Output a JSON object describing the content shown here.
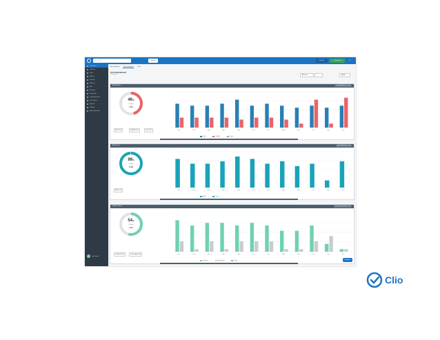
{
  "topbar": {
    "search_placeholder": "Search Clio",
    "search_button": "Search",
    "btn_timer": "00:00:00",
    "btn_create": "Create new",
    "color": "#1a74c3"
  },
  "sidebar": {
    "items": [
      {
        "label": "Dashboard",
        "icon": "dashboard-icon"
      },
      {
        "label": "Calendar",
        "icon": "calendar-icon"
      },
      {
        "label": "Tasks",
        "icon": "tasks-icon"
      },
      {
        "label": "Matters",
        "icon": "briefcase-icon"
      },
      {
        "label": "Contacts",
        "icon": "contacts-icon"
      },
      {
        "label": "Activities",
        "icon": "clock-icon"
      },
      {
        "label": "Bills",
        "icon": "bills-icon"
      },
      {
        "label": "Accounts",
        "icon": "bank-icon"
      },
      {
        "label": "Documents",
        "icon": "document-icon"
      },
      {
        "label": "Communications",
        "icon": "chat-icon"
      },
      {
        "label": "Clio Connect",
        "icon": "connect-icon"
      },
      {
        "label": "Reports",
        "icon": "report-icon"
      },
      {
        "label": "Settings",
        "icon": "gear-icon"
      },
      {
        "label": "App Integrations",
        "icon": "apps-icon"
      }
    ],
    "user_name": "Jane Smith",
    "user_role": "Attorney"
  },
  "tabs": [
    "My Dashboard",
    "Firm Dashboard",
    "Feed"
  ],
  "page": {
    "title": "Firm Dashboard",
    "subtitle": "This month",
    "filter_label": "All users",
    "range_label": "Month"
  },
  "panels": [
    {
      "title": "Billable Hours",
      "badge": "Target Billable Hours: 140",
      "donut_value": "46",
      "donut_unit": "%",
      "donut_caption": "Of Target",
      "donut_mid": "33h",
      "stats": [
        "Billed 0.00",
        "Unbilled 0.00",
        "Total 0.00"
      ],
      "legend": [
        "Billed",
        "Unbilled",
        "Target"
      ],
      "colors": {
        "primary": "#2a7fb5",
        "secondary": "#e96468",
        "ring": "#e96468"
      }
    },
    {
      "title": "Billed Hours",
      "badge": "Target Billed Hours: 120",
      "donut_value": "99",
      "donut_unit": "%",
      "donut_caption": "Of Target",
      "donut_mid": "119h",
      "stats": [
        "Billed 0.00"
      ],
      "legend": [
        "Billed",
        "Target"
      ],
      "colors": {
        "primary": "#1aa3b8",
        "secondary": "#1aa3b8",
        "ring": "#1aa3b8"
      }
    },
    {
      "title": "Collected Hours",
      "badge": "Target Collected Hours: 100",
      "donut_value": "54",
      "donut_unit": "%",
      "donut_caption": "Of Target",
      "donut_mid": "54h",
      "stats": [
        "Collected 0.00",
        "Outstanding 0.00"
      ],
      "legend": [
        "Collected",
        "Outstanding",
        "Target"
      ],
      "colors": {
        "primary": "#6fd1b3",
        "secondary": "#c8ccd0",
        "ring": "#6fd1b3"
      }
    }
  ],
  "chart_data": [
    {
      "type": "bar",
      "categories": [
        "Jan",
        "Feb",
        "Mar",
        "Apr",
        "May",
        "Jun",
        "Jul",
        "Aug",
        "Sep",
        "Oct",
        "Nov",
        "Dec"
      ],
      "series": [
        {
          "name": "Billed",
          "values": [
            12,
            11,
            11,
            12,
            14,
            11,
            12,
            11,
            10,
            11,
            10,
            11
          ]
        },
        {
          "name": "Unbilled",
          "values": [
            5,
            5,
            5,
            5,
            4,
            5,
            5,
            4,
            2,
            14,
            2,
            15
          ]
        }
      ],
      "ylim": [
        0,
        18
      ]
    },
    {
      "type": "bar",
      "categories": [
        "Jan",
        "Feb",
        "Mar",
        "Apr",
        "May",
        "Jun",
        "Jul",
        "Aug",
        "Sep",
        "Oct",
        "Nov",
        "Dec"
      ],
      "series": [
        {
          "name": "Billed",
          "values": [
            12,
            10,
            10,
            11,
            13,
            12,
            10,
            11,
            9,
            10,
            3,
            11
          ]
        }
      ],
      "ylim": [
        0,
        15
      ]
    },
    {
      "type": "bar",
      "categories": [
        "Jan",
        "Feb",
        "Mar",
        "Apr",
        "May",
        "Jun",
        "Jul",
        "Aug",
        "Sep",
        "Oct",
        "Nov",
        "Dec"
      ],
      "series": [
        {
          "name": "Collected",
          "values": [
            12,
            10,
            11,
            11,
            10,
            11,
            10,
            8,
            8,
            10,
            3,
            1
          ]
        },
        {
          "name": "Outstanding",
          "values": [
            4,
            1,
            4,
            1,
            4,
            4,
            4,
            1,
            1,
            4,
            6,
            1
          ]
        }
      ],
      "ylim": [
        0,
        15
      ]
    }
  ],
  "clio": {
    "wordmark": "Clio",
    "color": "#1a74c3"
  },
  "fab_label": "Feedback"
}
